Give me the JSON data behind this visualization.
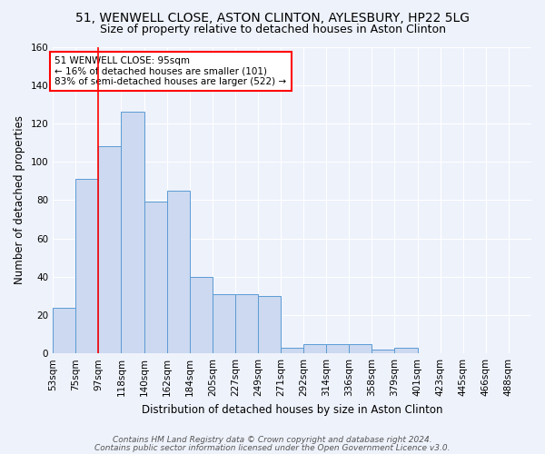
{
  "title1": "51, WENWELL CLOSE, ASTON CLINTON, AYLESBURY, HP22 5LG",
  "title2": "Size of property relative to detached houses in Aston Clinton",
  "xlabel": "Distribution of detached houses by size in Aston Clinton",
  "ylabel": "Number of detached properties",
  "footer1": "Contains HM Land Registry data © Crown copyright and database right 2024.",
  "footer2": "Contains public sector information licensed under the Open Government Licence v3.0.",
  "bin_labels": [
    "53sqm",
    "75sqm",
    "97sqm",
    "118sqm",
    "140sqm",
    "162sqm",
    "184sqm",
    "205sqm",
    "227sqm",
    "249sqm",
    "271sqm",
    "292sqm",
    "314sqm",
    "336sqm",
    "358sqm",
    "379sqm",
    "401sqm",
    "423sqm",
    "445sqm",
    "466sqm",
    "488sqm"
  ],
  "bar_heights": [
    24,
    91,
    108,
    126,
    79,
    85,
    40,
    31,
    31,
    30,
    3,
    5,
    5,
    5,
    2,
    3,
    0,
    0,
    0,
    0,
    0
  ],
  "bar_color": "#ccd9f0",
  "bar_edge_color": "#5b9bd5",
  "annotation_text": "51 WENWELL CLOSE: 95sqm\n← 16% of detached houses are smaller (101)\n83% of semi-detached houses are larger (522) →",
  "annotation_box_color": "white",
  "annotation_box_edge_color": "red",
  "red_line_color": "red",
  "red_line_bin_index": 2,
  "ylim": [
    0,
    160
  ],
  "yticks": [
    0,
    20,
    40,
    60,
    80,
    100,
    120,
    140,
    160
  ],
  "bg_color": "#eef2fb",
  "grid_color": "white",
  "title_fontsize": 10,
  "subtitle_fontsize": 9,
  "axis_label_fontsize": 8.5,
  "tick_fontsize": 7.5,
  "footer_fontsize": 6.5,
  "annotation_fontsize": 7.5
}
